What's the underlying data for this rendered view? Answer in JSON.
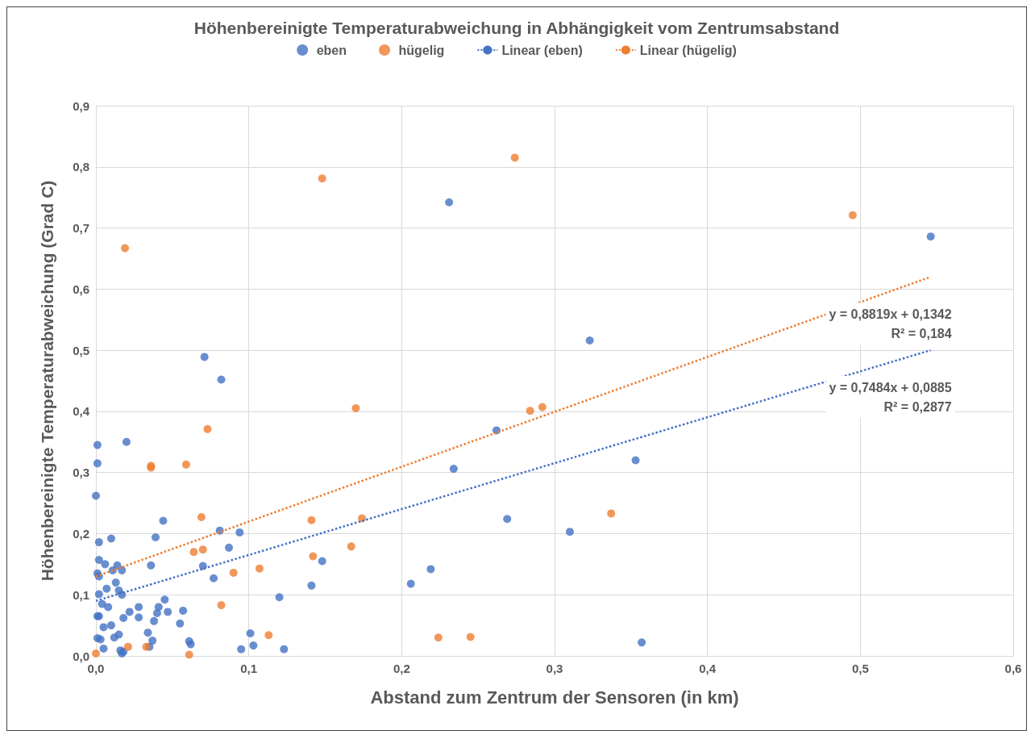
{
  "chart_data": {
    "type": "scatter",
    "title": "Höhenbereinigte Temperaturabweichung in Abhängigkeit vom Zentrumsabstand",
    "xlabel": "Abstand zum Zentrum der Sensoren (in km)",
    "ylabel": "Höhenbereinigte Temperaturabweichung (Grad C)",
    "xlim": [
      0,
      0.6
    ],
    "xticks": [
      {
        "value": 0,
        "label": "0,0"
      },
      {
        "value": 0.1,
        "label": "0,1"
      },
      {
        "value": 0.2,
        "label": "0,2"
      },
      {
        "value": 0.3,
        "label": "0,3"
      },
      {
        "value": 0.4,
        "label": "0,4"
      },
      {
        "value": 0.5,
        "label": "0,5"
      },
      {
        "value": 0.6,
        "label": "0,6"
      }
    ],
    "ylim": [
      0,
      0.9
    ],
    "yticks": [
      {
        "value": 0,
        "label": "0,0"
      },
      {
        "value": 0.1,
        "label": "0,1"
      },
      {
        "value": 0.2,
        "label": "0,2"
      },
      {
        "value": 0.3,
        "label": "0,3"
      },
      {
        "value": 0.4,
        "label": "0,4"
      },
      {
        "value": 0.5,
        "label": "0,5"
      },
      {
        "value": 0.6,
        "label": "0,6"
      },
      {
        "value": 0.7,
        "label": "0,7"
      },
      {
        "value": 0.8,
        "label": "0,8"
      },
      {
        "value": 0.9,
        "label": "0,9"
      }
    ],
    "grid": true,
    "legend": "top",
    "marker": "circle",
    "series": [
      {
        "name": "eben",
        "color": "#4472c4",
        "x": [
          0.001,
          0.001,
          0.0,
          0.002,
          0.002,
          0.001,
          0.002,
          0.002,
          0.001,
          0.002,
          0.001,
          0.003,
          0.02,
          0.01,
          0.006,
          0.004,
          0.007,
          0.008,
          0.005,
          0.005,
          0.01,
          0.011,
          0.012,
          0.014,
          0.013,
          0.015,
          0.017,
          0.017,
          0.015,
          0.016,
          0.017,
          0.018,
          0.018,
          0.022,
          0.028,
          0.028,
          0.034,
          0.035,
          0.036,
          0.037,
          0.038,
          0.039,
          0.04,
          0.041,
          0.044,
          0.045,
          0.047,
          0.055,
          0.057,
          0.061,
          0.062,
          0.07,
          0.071,
          0.077,
          0.081,
          0.082,
          0.087,
          0.094,
          0.095,
          0.101,
          0.103,
          0.12,
          0.123,
          0.141,
          0.148,
          0.206,
          0.219,
          0.231,
          0.234,
          0.262,
          0.269,
          0.31,
          0.323,
          0.353,
          0.357,
          0.546
        ],
        "values": [
          0.345,
          0.315,
          0.262,
          0.186,
          0.157,
          0.135,
          0.13,
          0.101,
          0.065,
          0.065,
          0.029,
          0.027,
          0.35,
          0.192,
          0.15,
          0.085,
          0.11,
          0.08,
          0.047,
          0.012,
          0.05,
          0.14,
          0.03,
          0.148,
          0.12,
          0.107,
          0.14,
          0.1,
          0.035,
          0.009,
          0.004,
          0.007,
          0.062,
          0.072,
          0.08,
          0.063,
          0.038,
          0.015,
          0.148,
          0.025,
          0.057,
          0.194,
          0.07,
          0.08,
          0.221,
          0.092,
          0.072,
          0.053,
          0.074,
          0.024,
          0.019,
          0.147,
          0.489,
          0.127,
          0.205,
          0.452,
          0.177,
          0.202,
          0.011,
          0.037,
          0.017,
          0.096,
          0.011,
          0.115,
          0.155,
          0.118,
          0.142,
          0.742,
          0.306,
          0.369,
          0.224,
          0.203,
          0.516,
          0.32,
          0.022,
          0.686
        ]
      },
      {
        "name": "hügelig",
        "color": "#ed7d31",
        "x": [
          0.0,
          0.019,
          0.021,
          0.033,
          0.036,
          0.036,
          0.059,
          0.061,
          0.064,
          0.069,
          0.07,
          0.073,
          0.082,
          0.09,
          0.107,
          0.113,
          0.141,
          0.142,
          0.148,
          0.167,
          0.17,
          0.174,
          0.224,
          0.245,
          0.274,
          0.284,
          0.292,
          0.337,
          0.495
        ],
        "values": [
          0.004,
          0.667,
          0.015,
          0.015,
          0.311,
          0.308,
          0.313,
          0.002,
          0.17,
          0.227,
          0.174,
          0.371,
          0.083,
          0.136,
          0.143,
          0.034,
          0.222,
          0.163,
          0.781,
          0.179,
          0.405,
          0.225,
          0.03,
          0.031,
          0.815,
          0.401,
          0.407,
          0.233,
          0.721
        ]
      },
      {
        "name": "Linear (eben)",
        "type": "line",
        "line_style": "dotted",
        "marker": "none",
        "color": "#4472c4",
        "x": [
          0,
          0.546
        ],
        "values": [
          0.09,
          0.5
        ]
      },
      {
        "name": "Linear (hügelig)",
        "type": "line",
        "line_style": "dotted",
        "marker": "none",
        "color": "#ed7d31",
        "x": [
          0,
          0.546
        ],
        "values": [
          0.13,
          0.62
        ]
      }
    ],
    "annotations": [
      {
        "text": "y = 0,8819x + 0,1342\nR² = 0,184",
        "x": 0.546,
        "y": 0.62
      },
      {
        "text": "y = 0,7484x + 0,0885\nR² = 0,2877",
        "x": 0.546,
        "y": 0.5
      }
    ]
  }
}
